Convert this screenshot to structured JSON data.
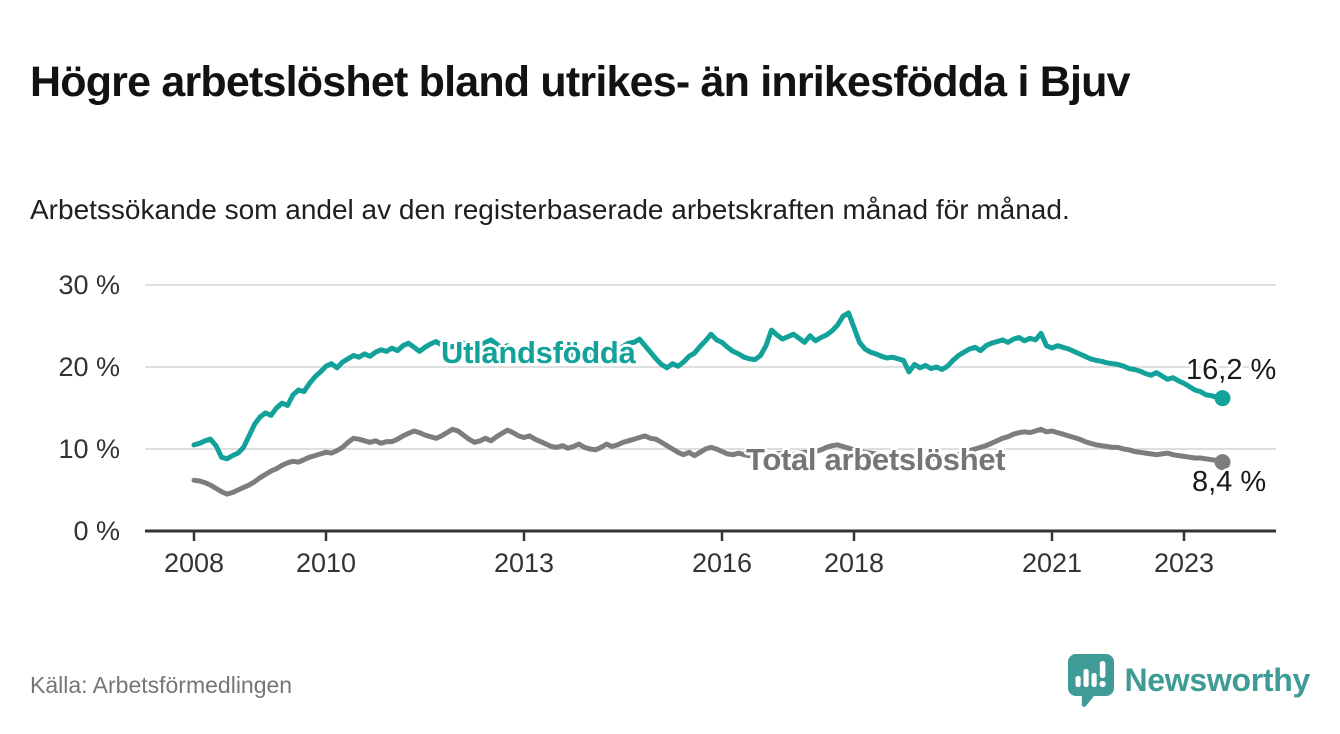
{
  "title": "Högre arbetslöshet bland utrikes- än inrikesfödda i Bjuv",
  "subtitle": "Arbetssökande som andel av den registerbaserade arbetskraften månad för månad.",
  "source": "Källa: Arbetsförmedlingen",
  "logo": {
    "brand": "Newsworthy"
  },
  "colors": {
    "accent_teal": "#13A29A",
    "total_gray": "#7D7D7D",
    "gray_label": "#757575",
    "logo_teal": "#3F9B95",
    "axis": "#333333",
    "grid": "#DFDFDF",
    "value_text": "#1A1A1A",
    "source_text": "#767676"
  },
  "chart_data": {
    "type": "line",
    "unit": "%",
    "frequency": "monthly",
    "x_start": {
      "year": 2008,
      "month": 1
    },
    "x_end": {
      "year": 2023,
      "month": 8
    },
    "ylim": [
      0,
      30
    ],
    "grid": "horizontal",
    "yticks": [
      {
        "value": 0,
        "label": "0 %"
      },
      {
        "value": 10,
        "label": "10 %"
      },
      {
        "value": 20,
        "label": "20 %"
      },
      {
        "value": 30,
        "label": "30 %"
      }
    ],
    "xticks": [
      {
        "value": 2008,
        "label": "2008"
      },
      {
        "value": 2010,
        "label": "2010"
      },
      {
        "value": 2013,
        "label": "2013"
      },
      {
        "value": 2016,
        "label": "2016"
      },
      {
        "value": 2018,
        "label": "2018"
      },
      {
        "value": 2021,
        "label": "2021"
      },
      {
        "value": 2023,
        "label": "2023"
      }
    ],
    "series": [
      {
        "id": "foreign",
        "name": "Utlandsfödda",
        "end_label": "16,2 %",
        "color": "#13A29A",
        "values": [
          10.5,
          10.7,
          11.0,
          11.2,
          10.4,
          9.0,
          8.8,
          9.2,
          9.5,
          10.2,
          11.6,
          13.0,
          13.9,
          14.4,
          14.1,
          15.0,
          15.6,
          15.3,
          16.6,
          17.2,
          17.0,
          18.0,
          18.8,
          19.4,
          20.1,
          20.4,
          19.9,
          20.6,
          21.0,
          21.4,
          21.2,
          21.6,
          21.3,
          21.8,
          22.1,
          21.9,
          22.3,
          22.0,
          22.6,
          22.9,
          22.4,
          21.9,
          22.4,
          22.8,
          23.1,
          22.7,
          22.3,
          22.5,
          22.5,
          22.9,
          22.4,
          22.0,
          22.6,
          23.0,
          23.3,
          22.8,
          22.3,
          22.6,
          22.1,
          21.8,
          22.0,
          22.3,
          21.9,
          21.5,
          21.2,
          21.6,
          22.0,
          21.7,
          21.3,
          21.6,
          22.0,
          21.8,
          21.5,
          21.9,
          22.3,
          22.0,
          22.4,
          22.1,
          22.5,
          22.9,
          23.0,
          23.4,
          22.6,
          21.8,
          21.0,
          20.3,
          19.9,
          20.4,
          20.1,
          20.6,
          21.3,
          21.7,
          22.5,
          23.2,
          24.0,
          23.3,
          23.0,
          22.4,
          21.9,
          21.6,
          21.2,
          21.0,
          20.9,
          21.4,
          22.6,
          24.5,
          23.9,
          23.4,
          23.7,
          24.0,
          23.5,
          23.0,
          23.8,
          23.2,
          23.6,
          23.9,
          24.4,
          25.1,
          26.2,
          26.6,
          24.8,
          23.0,
          22.2,
          21.8,
          21.6,
          21.3,
          21.1,
          21.2,
          21.0,
          20.8,
          19.4,
          20.3,
          19.9,
          20.2,
          19.8,
          20.0,
          19.7,
          20.1,
          20.8,
          21.4,
          21.8,
          22.2,
          22.4,
          22.0,
          22.6,
          22.9,
          23.1,
          23.3,
          23.0,
          23.4,
          23.6,
          23.2,
          23.5,
          23.3,
          24.1,
          22.6,
          22.3,
          22.6,
          22.4,
          22.2,
          21.9,
          21.6,
          21.3,
          21.0,
          20.8,
          20.7,
          20.5,
          20.4,
          20.3,
          20.1,
          19.8,
          19.7,
          19.5,
          19.2,
          19.0,
          19.3,
          18.9,
          18.5,
          18.7,
          18.3,
          18.0,
          17.6,
          17.2,
          17.0,
          16.6,
          16.5,
          16.3,
          16.2
        ]
      },
      {
        "id": "total",
        "name": "Total arbetslöshet",
        "end_label": "8,4 %",
        "color": "#7D7D7D",
        "values": [
          6.2,
          6.1,
          5.9,
          5.6,
          5.2,
          4.8,
          4.5,
          4.7,
          5.0,
          5.3,
          5.6,
          6.0,
          6.5,
          6.9,
          7.3,
          7.6,
          8.0,
          8.3,
          8.5,
          8.4,
          8.7,
          9.0,
          9.2,
          9.4,
          9.6,
          9.5,
          9.8,
          10.2,
          10.8,
          11.3,
          11.2,
          11.0,
          10.8,
          11.0,
          10.7,
          10.9,
          10.9,
          11.2,
          11.6,
          11.9,
          12.2,
          12.0,
          11.7,
          11.5,
          11.3,
          11.6,
          12.0,
          12.4,
          12.2,
          11.7,
          11.2,
          10.8,
          11.0,
          11.3,
          11.0,
          11.5,
          11.9,
          12.3,
          12.0,
          11.6,
          11.4,
          11.6,
          11.2,
          10.9,
          10.6,
          10.3,
          10.2,
          10.4,
          10.1,
          10.3,
          10.6,
          10.2,
          10.0,
          9.9,
          10.2,
          10.6,
          10.3,
          10.5,
          10.8,
          11.0,
          11.2,
          11.4,
          11.6,
          11.3,
          11.2,
          10.8,
          10.4,
          10.0,
          9.6,
          9.3,
          9.6,
          9.2,
          9.6,
          10.0,
          10.2,
          10.0,
          9.7,
          9.4,
          9.3,
          9.5,
          9.3,
          9.2,
          9.4,
          9.6,
          9.5,
          9.3,
          9.4,
          9.5,
          9.4,
          9.3,
          9.5,
          9.6,
          9.5,
          9.7,
          9.9,
          10.2,
          10.4,
          10.5,
          10.3,
          10.1,
          9.9,
          9.7,
          9.6,
          9.5,
          9.4,
          9.3,
          9.2,
          9.3,
          9.2,
          9.1,
          9.0,
          9.1,
          9.0,
          8.9,
          8.8,
          8.9,
          9.0,
          8.9,
          9.1,
          9.3,
          9.5,
          9.8,
          10.0,
          10.2,
          10.4,
          10.7,
          11.0,
          11.3,
          11.5,
          11.8,
          12.0,
          12.1,
          12.0,
          12.2,
          12.4,
          12.1,
          12.2,
          12.0,
          11.8,
          11.6,
          11.4,
          11.2,
          10.9,
          10.7,
          10.5,
          10.4,
          10.3,
          10.2,
          10.2,
          10.0,
          9.9,
          9.7,
          9.6,
          9.5,
          9.4,
          9.3,
          9.4,
          9.5,
          9.3,
          9.2,
          9.1,
          9.0,
          8.9,
          8.9,
          8.8,
          8.7,
          8.6,
          8.4
        ]
      }
    ]
  }
}
